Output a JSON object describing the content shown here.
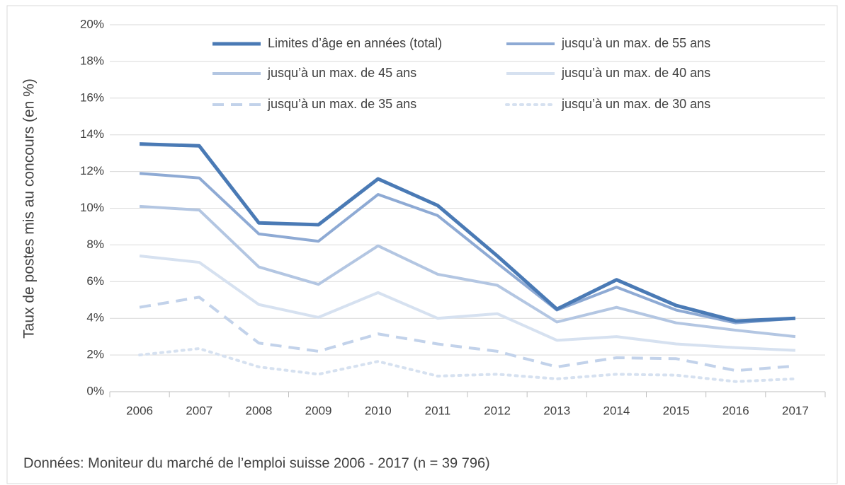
{
  "chart_data": {
    "type": "line",
    "y_label": "Taux de postes mis au concours (en %)",
    "note": "Données: Moniteur du marché de l’emploi suisse 2006 - 2017 (n = 39 796)",
    "categories": [
      "2006",
      "2007",
      "2008",
      "2009",
      "2010",
      "2011",
      "2012",
      "2013",
      "2014",
      "2015",
      "2016",
      "2017"
    ],
    "ylim": [
      0,
      20
    ],
    "yticks": [
      {
        "value": 0,
        "label": "0%"
      },
      {
        "value": 2,
        "label": "2%"
      },
      {
        "value": 4,
        "label": "4%"
      },
      {
        "value": 6,
        "label": "6%"
      },
      {
        "value": 8,
        "label": "8%"
      },
      {
        "value": 10,
        "label": "10%"
      },
      {
        "value": 12,
        "label": "12%"
      },
      {
        "value": 14,
        "label": "14%"
      },
      {
        "value": 16,
        "label": "16%"
      },
      {
        "value": 18,
        "label": "18%"
      },
      {
        "value": 20,
        "label": "20%"
      }
    ],
    "grid": true,
    "legend": "top",
    "series": [
      {
        "name": "Limites d’âge en années (total)",
        "color": "#4a7ab5",
        "linestyle": "solid",
        "values": [
          13.5,
          13.4,
          9.2,
          9.1,
          11.6,
          10.15,
          7.4,
          4.5,
          6.1,
          4.7,
          3.85,
          4.0
        ]
      },
      {
        "name": "jusqu’à un max. de 55 ans",
        "color": "#8eaad4",
        "linestyle": "solid",
        "values": [
          11.9,
          11.65,
          8.6,
          8.2,
          10.75,
          9.6,
          7.0,
          4.45,
          5.7,
          4.45,
          3.75,
          4.0
        ]
      },
      {
        "name": "jusqu’à un max. de 45 ans",
        "color": "#b3c6e2",
        "linestyle": "solid",
        "values": [
          10.1,
          9.9,
          6.8,
          5.85,
          7.95,
          6.4,
          5.8,
          3.8,
          4.6,
          3.75,
          3.35,
          3.0
        ]
      },
      {
        "name": "jusqu’à un max. de 40 ans",
        "color": "#d6e1f0",
        "linestyle": "solid",
        "values": [
          7.4,
          7.05,
          4.75,
          4.05,
          5.4,
          4.0,
          4.25,
          2.8,
          3.0,
          2.6,
          2.4,
          2.25
        ]
      },
      {
        "name": "jusqu’à un max. de 35 ans",
        "color": "#c2d2ea",
        "linestyle": "dashed",
        "values": [
          4.6,
          5.15,
          2.65,
          2.2,
          3.15,
          2.6,
          2.2,
          1.35,
          1.85,
          1.8,
          1.15,
          1.4
        ]
      },
      {
        "name": "jusqu’à un max. de 30 ans",
        "color": "#d6e1f0",
        "linestyle": "dotted",
        "values": [
          2.0,
          2.35,
          1.35,
          0.95,
          1.65,
          0.85,
          0.95,
          0.7,
          0.95,
          0.9,
          0.55,
          0.7
        ]
      }
    ]
  }
}
